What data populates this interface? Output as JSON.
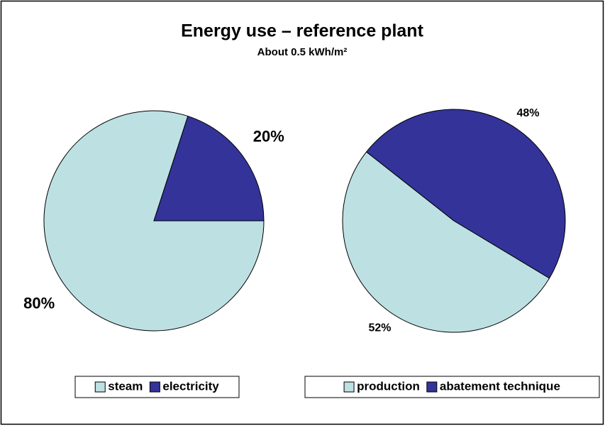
{
  "title": "Energy use – reference plant",
  "subtitle": "About 0.5 kWh/m²",
  "chart_data": [
    {
      "type": "pie",
      "categories": [
        "steam",
        "electricity"
      ],
      "values": [
        80,
        20
      ],
      "value_labels": [
        "80%",
        "20%"
      ],
      "colors": [
        "#bde0e3",
        "#333399"
      ],
      "legend": "bottom"
    },
    {
      "type": "pie",
      "categories": [
        "production",
        "abatement technique"
      ],
      "values": [
        52,
        48
      ],
      "value_labels": [
        "52%",
        "48%"
      ],
      "colors": [
        "#bde0e3",
        "#333399"
      ],
      "legend": "bottom"
    }
  ]
}
